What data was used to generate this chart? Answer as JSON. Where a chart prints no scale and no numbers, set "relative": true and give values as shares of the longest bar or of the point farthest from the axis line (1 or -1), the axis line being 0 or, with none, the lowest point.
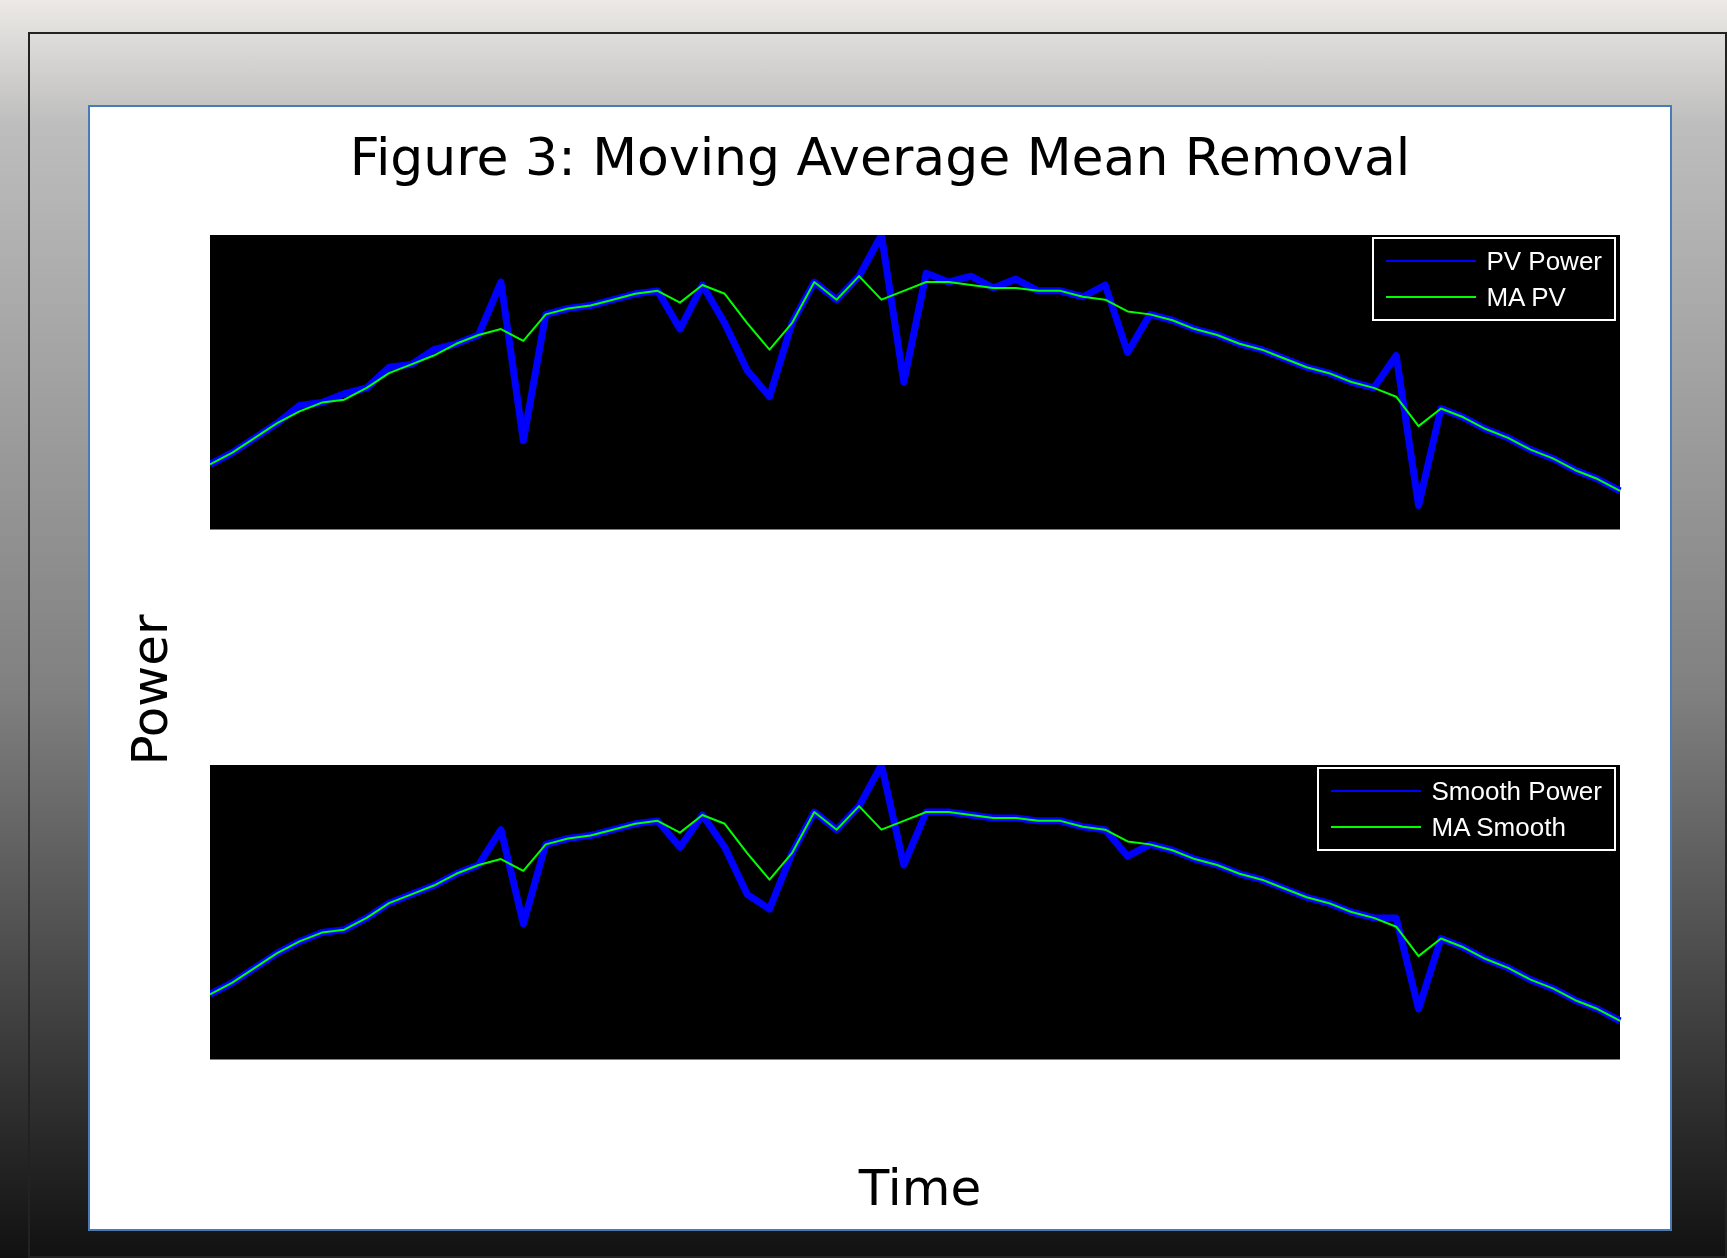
{
  "chart_data": [
    {
      "type": "line",
      "title": "Figure 3: Moving Average Mean Removal",
      "ylabel": "Power",
      "relative": true,
      "legend": "top right",
      "categories": [
        null,
        null,
        null,
        null,
        null,
        null,
        null,
        null,
        null,
        null,
        null,
        null,
        null,
        null,
        null,
        null,
        null,
        null,
        null,
        null,
        null,
        null,
        null,
        null,
        null,
        null,
        null,
        null,
        null,
        null,
        null,
        null,
        null,
        null,
        null,
        null,
        null,
        null,
        null,
        null,
        null,
        null,
        null,
        null,
        null,
        null,
        null,
        null,
        null,
        null,
        null,
        null,
        null,
        null,
        null,
        null,
        null,
        null,
        null,
        null,
        null,
        null,
        null,
        null
      ],
      "series": [
        {
          "name": "PV Power",
          "color": "#0000ff",
          "values": [
            0.22,
            0.26,
            0.31,
            0.36,
            0.42,
            0.43,
            0.46,
            0.48,
            0.55,
            0.56,
            0.61,
            0.63,
            0.66,
            0.84,
            0.3,
            0.73,
            0.75,
            0.76,
            0.78,
            0.8,
            0.81,
            0.68,
            0.83,
            0.7,
            0.54,
            0.45,
            0.7,
            0.84,
            0.78,
            0.86,
            1.0,
            0.5,
            0.87,
            0.84,
            0.86,
            0.82,
            0.85,
            0.81,
            0.81,
            0.79,
            0.83,
            0.6,
            0.73,
            0.71,
            0.68,
            0.66,
            0.63,
            0.61,
            0.58,
            0.55,
            0.53,
            0.5,
            0.48,
            0.59,
            0.08,
            0.41,
            0.38,
            0.34,
            0.31,
            0.27,
            0.24,
            0.2,
            0.17,
            0.13
          ]
        },
        {
          "name": "MA PV",
          "color": "#00ff00",
          "values": [
            0.22,
            0.26,
            0.31,
            0.36,
            0.4,
            0.43,
            0.44,
            0.48,
            0.53,
            0.56,
            0.59,
            0.63,
            0.66,
            0.68,
            0.64,
            0.73,
            0.75,
            0.76,
            0.78,
            0.8,
            0.81,
            0.77,
            0.83,
            0.8,
            0.7,
            0.61,
            0.7,
            0.84,
            0.78,
            0.86,
            0.78,
            0.81,
            0.84,
            0.84,
            0.83,
            0.82,
            0.82,
            0.81,
            0.81,
            0.79,
            0.78,
            0.74,
            0.73,
            0.71,
            0.68,
            0.66,
            0.63,
            0.61,
            0.58,
            0.55,
            0.53,
            0.5,
            0.48,
            0.45,
            0.35,
            0.41,
            0.38,
            0.34,
            0.31,
            0.27,
            0.24,
            0.2,
            0.17,
            0.13
          ]
        }
      ]
    },
    {
      "type": "line",
      "xlabel": "Time",
      "relative": true,
      "legend": "top right",
      "categories": [
        null,
        null,
        null,
        null,
        null,
        null,
        null,
        null,
        null,
        null,
        null,
        null,
        null,
        null,
        null,
        null,
        null,
        null,
        null,
        null,
        null,
        null,
        null,
        null,
        null,
        null,
        null,
        null,
        null,
        null,
        null,
        null,
        null,
        null,
        null,
        null,
        null,
        null,
        null,
        null,
        null,
        null,
        null,
        null,
        null,
        null,
        null,
        null,
        null,
        null,
        null,
        null,
        null,
        null,
        null,
        null,
        null,
        null,
        null,
        null,
        null,
        null,
        null,
        null
      ],
      "series": [
        {
          "name": "Smooth Power",
          "color": "#0000ff",
          "values": [
            0.22,
            0.26,
            0.31,
            0.36,
            0.4,
            0.43,
            0.44,
            0.48,
            0.53,
            0.56,
            0.59,
            0.63,
            0.66,
            0.78,
            0.46,
            0.73,
            0.75,
            0.76,
            0.78,
            0.8,
            0.81,
            0.72,
            0.83,
            0.72,
            0.56,
            0.51,
            0.7,
            0.84,
            0.78,
            0.86,
            1.0,
            0.66,
            0.84,
            0.84,
            0.83,
            0.82,
            0.82,
            0.81,
            0.81,
            0.79,
            0.78,
            0.69,
            0.73,
            0.71,
            0.68,
            0.66,
            0.63,
            0.61,
            0.58,
            0.55,
            0.53,
            0.5,
            0.48,
            0.48,
            0.17,
            0.41,
            0.38,
            0.34,
            0.31,
            0.27,
            0.24,
            0.2,
            0.17,
            0.13
          ]
        },
        {
          "name": "MA Smooth",
          "color": "#00ff00",
          "values": [
            0.22,
            0.26,
            0.31,
            0.36,
            0.4,
            0.43,
            0.44,
            0.48,
            0.53,
            0.56,
            0.59,
            0.63,
            0.66,
            0.68,
            0.64,
            0.73,
            0.75,
            0.76,
            0.78,
            0.8,
            0.81,
            0.77,
            0.83,
            0.8,
            0.7,
            0.61,
            0.7,
            0.84,
            0.78,
            0.86,
            0.78,
            0.81,
            0.84,
            0.84,
            0.83,
            0.82,
            0.82,
            0.81,
            0.81,
            0.79,
            0.78,
            0.74,
            0.73,
            0.71,
            0.68,
            0.66,
            0.63,
            0.61,
            0.58,
            0.55,
            0.53,
            0.5,
            0.48,
            0.45,
            0.35,
            0.41,
            0.38,
            0.34,
            0.31,
            0.27,
            0.24,
            0.2,
            0.17,
            0.13
          ]
        }
      ]
    }
  ]
}
